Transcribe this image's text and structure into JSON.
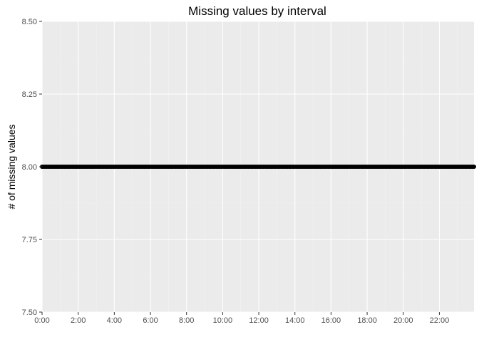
{
  "chart_data": {
    "type": "scatter",
    "title": "Missing values by interval",
    "xlabel": "",
    "ylabel": "# of missing values",
    "xlim": [
      "0:00",
      "23:55"
    ],
    "ylim": [
      7.5,
      8.5
    ],
    "x_tick_labels": [
      "0:00",
      "2:00",
      "4:00",
      "6:00",
      "8:00",
      "10:00",
      "12:00",
      "14:00",
      "16:00",
      "18:00",
      "20:00",
      "22:00"
    ],
    "y_tick_labels": [
      "7.50",
      "7.75",
      "8.00",
      "8.25",
      "8.50"
    ],
    "y_ticks": [
      7.5,
      7.75,
      8.0,
      8.25,
      8.5
    ],
    "grid": true,
    "series": [
      {
        "interval_step_minutes": 5,
        "x_start": "0:00",
        "x_end": "23:55",
        "y": 8,
        "color": "#000000"
      }
    ]
  },
  "colors": {
    "panel_background": "#ebebeb",
    "grid_major": "#ffffff",
    "grid_minor": "#f2f2f2",
    "point": "#000000"
  }
}
